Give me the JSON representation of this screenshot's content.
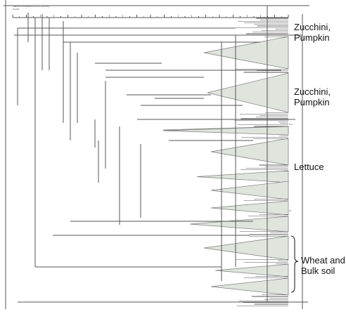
{
  "header": {
    "line1": "Pearson correlation (0.0%-100.0%)",
    "line2": "DGGE"
  },
  "scale": {
    "min": 0,
    "max": 100,
    "major_step": 5,
    "minor_step": 2.5
  },
  "group_labels": [
    {
      "key": "zucchini-pumpkin-1",
      "line1": "Zucchini,",
      "line2": "Pumpkin"
    },
    {
      "key": "zucchini-pumpkin-2",
      "line1": "Zucchini,",
      "line2": "Pumpkin"
    },
    {
      "key": "lettuce",
      "line1": "Lettuce",
      "line2": ""
    },
    {
      "key": "wheat-bulk-soil",
      "line1": "Wheat and",
      "line2": "Bulk soil"
    }
  ],
  "node_tags": [
    "NIS",
    "PS"
  ],
  "colors": {
    "line": "#555555",
    "cluster_fill": "#dfe4dd",
    "cluster_stroke": "#7a7a7a",
    "text": "#111111"
  }
}
